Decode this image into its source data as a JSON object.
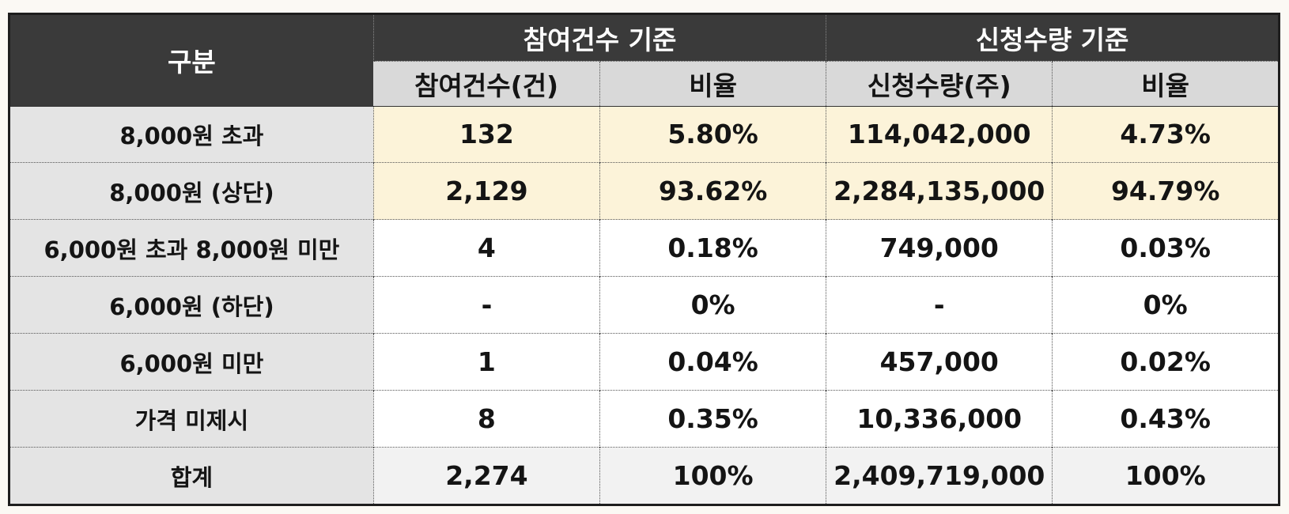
{
  "table": {
    "corner_label": "구분",
    "group_headers": [
      "참여건수 기준",
      "신청수량 기준"
    ],
    "sub_headers": [
      "참여건수(건)",
      "비율",
      "신청수량(주)",
      "비율"
    ],
    "rows": [
      {
        "label": "8,000원 초과",
        "values": [
          "132",
          "5.80%",
          "114,042,000",
          "4.73%"
        ],
        "highlight": true
      },
      {
        "label": "8,000원 (상단)",
        "values": [
          "2,129",
          "93.62%",
          "2,284,135,000",
          "94.79%"
        ],
        "highlight": true
      },
      {
        "label": "6,000원 초과 8,000원 미만",
        "values": [
          "4",
          "0.18%",
          "749,000",
          "0.03%"
        ],
        "highlight": false
      },
      {
        "label": "6,000원 (하단)",
        "values": [
          "-",
          "0%",
          "-",
          "0%"
        ],
        "highlight": false
      },
      {
        "label": "6,000원 미만",
        "values": [
          "1",
          "0.04%",
          "457,000",
          "0.02%"
        ],
        "highlight": false
      },
      {
        "label": "가격 미제시",
        "values": [
          "8",
          "0.35%",
          "10,336,000",
          "0.43%"
        ],
        "highlight": false
      },
      {
        "label": "합계",
        "values": [
          "2,274",
          "100%",
          "2,409,719,000",
          "100%"
        ],
        "highlight": false
      }
    ]
  },
  "colors": {
    "header_dark": "#3a3a3a",
    "header_sub": "#d9d9d9",
    "row_label_bg": "#e4e4e4",
    "highlight_bg": "#fcf3d9",
    "total_bg": "#f2f2f2"
  }
}
